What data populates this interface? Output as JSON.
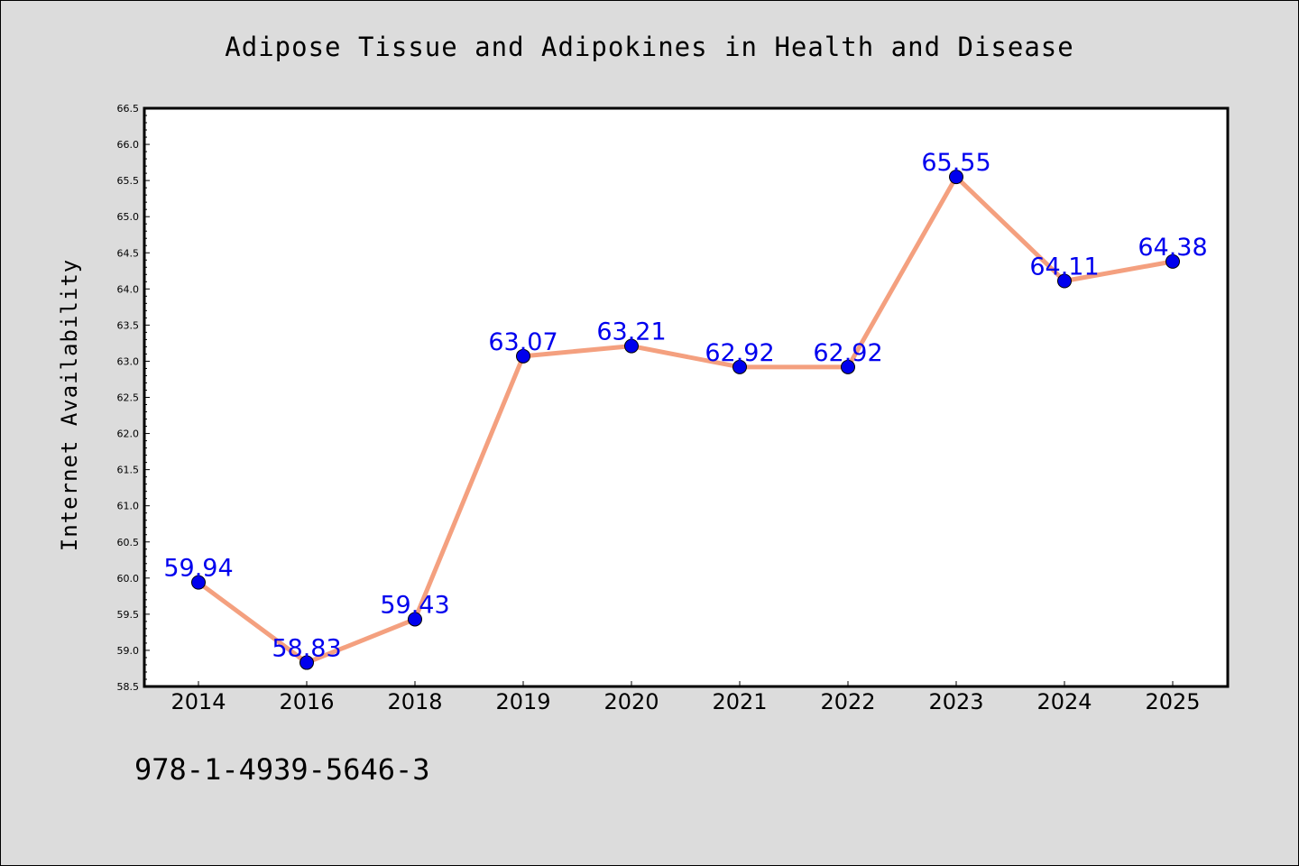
{
  "figure": {
    "footer_text": "978-1-4939-5646-3"
  },
  "chart_data": {
    "type": "line",
    "title": "Adipose Tissue and Adipokines in Health and Disease",
    "xlabel": "",
    "ylabel": "Internet Availability",
    "categories": [
      "2014",
      "2016",
      "2018",
      "2019",
      "2020",
      "2021",
      "2022",
      "2023",
      "2024",
      "2025"
    ],
    "series": [
      {
        "values": [
          59.94,
          58.83,
          59.43,
          63.07,
          63.21,
          62.92,
          62.92,
          65.55,
          64.11,
          64.38
        ],
        "data_labels": [
          "59.94",
          "58.83",
          "59.43",
          "63.07",
          "63.21",
          "62.92",
          "62.92",
          "65.55",
          "64.11",
          "64.38"
        ],
        "line_color": "#f4a07f",
        "marker_color": "#0000ee",
        "label_color": "#0000ee"
      }
    ],
    "ylim": [
      58.5,
      66.5
    ],
    "yticks": [
      "58.5",
      "59.0",
      "59.5",
      "60.0",
      "60.5",
      "61.0",
      "61.5",
      "62.0",
      "62.5",
      "63.0",
      "63.5",
      "64.0",
      "64.5",
      "65.0",
      "65.5",
      "66.0",
      "66.5"
    ],
    "grid": false,
    "legend": "none"
  }
}
